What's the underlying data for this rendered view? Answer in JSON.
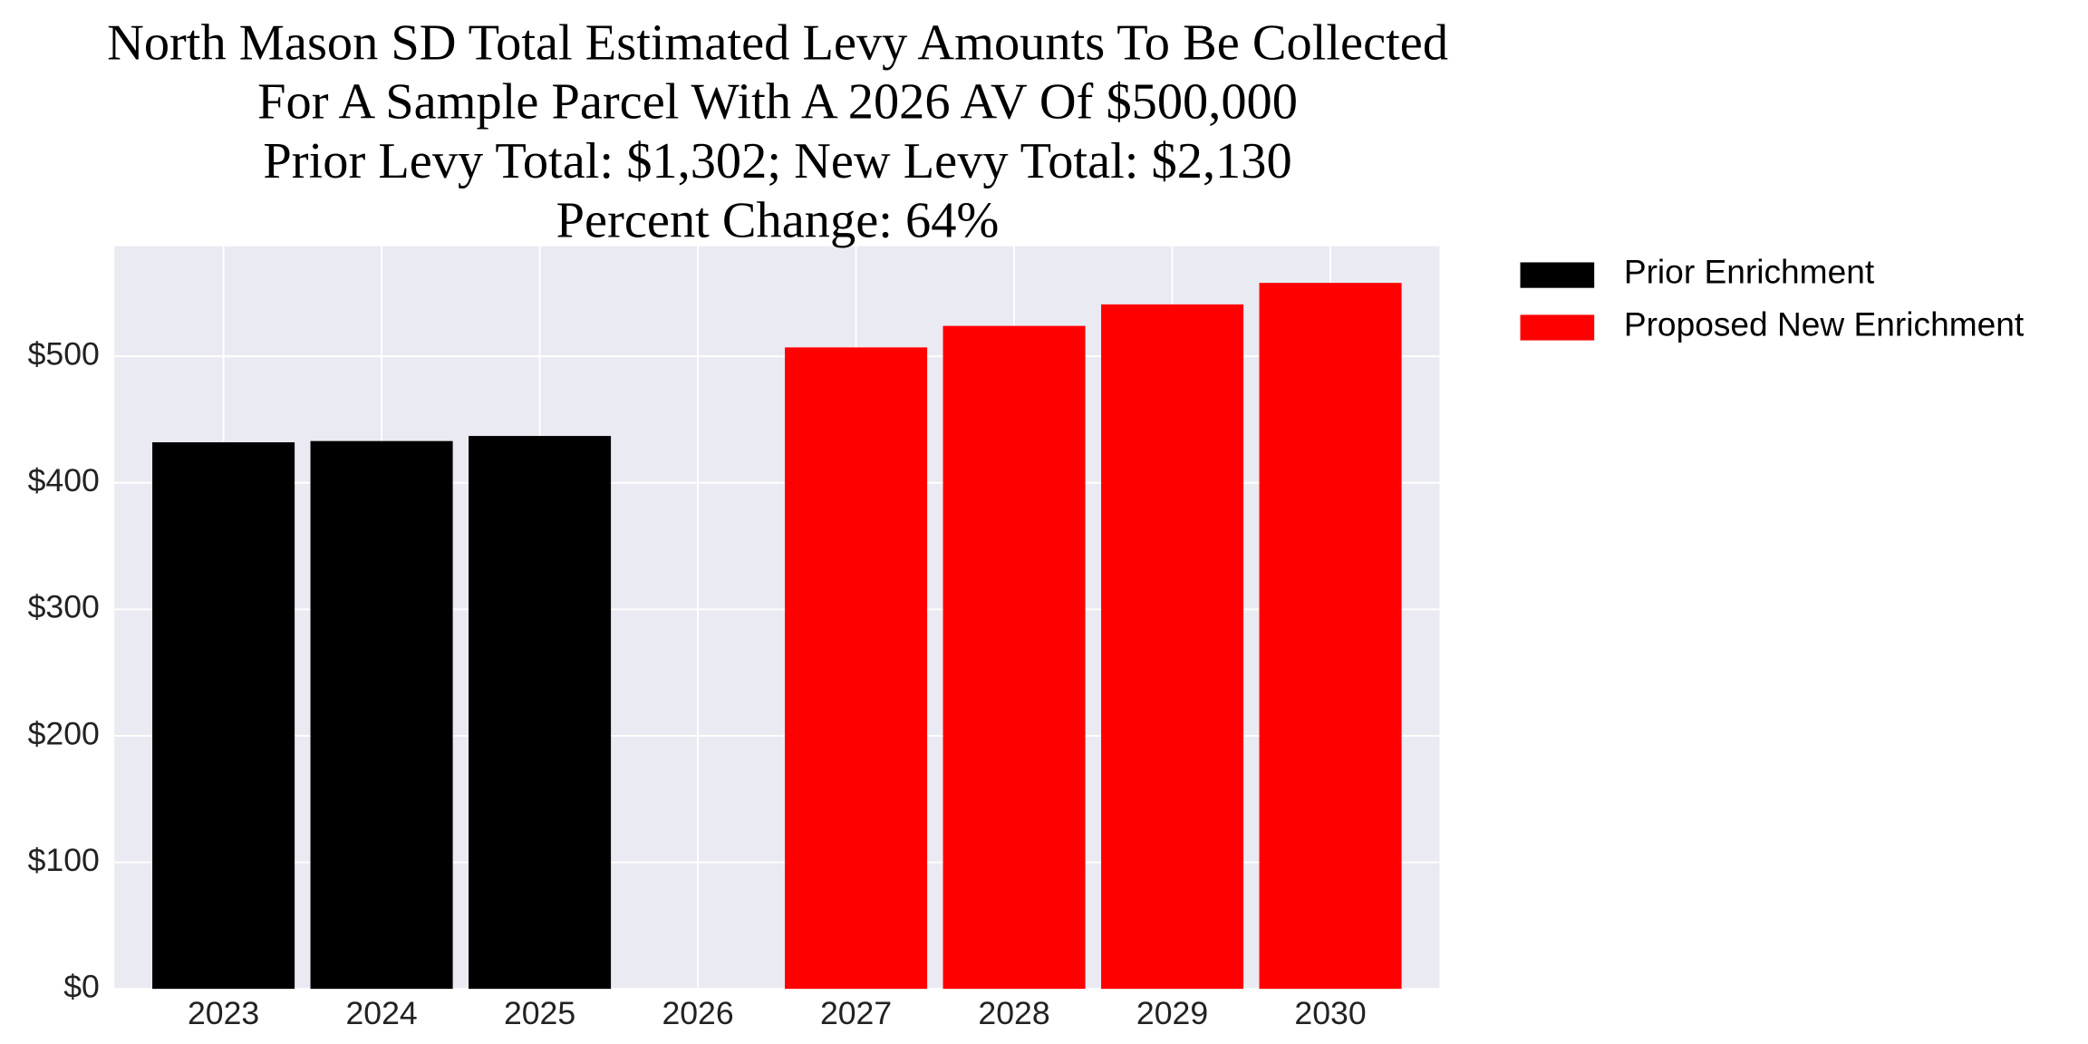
{
  "chart_data": {
    "type": "bar",
    "title_lines": [
      "North Mason SD Total Estimated Levy Amounts To Be Collected",
      "For A Sample Parcel With A 2026 AV Of $500,000",
      "Prior Levy Total:  $1,302; New Levy Total: $2,130",
      "Percent Change: 64%"
    ],
    "categories": [
      "2023",
      "2024",
      "2025",
      "2026",
      "2027",
      "2028",
      "2029",
      "2030"
    ],
    "series": [
      {
        "name": "Prior Enrichment",
        "color": "#000000",
        "values": [
          432,
          433,
          437,
          null,
          null,
          null,
          null,
          null
        ]
      },
      {
        "name": "Proposed New Enrichment",
        "color": "#ff0000",
        "values": [
          null,
          null,
          null,
          null,
          507,
          524,
          541,
          558
        ]
      }
    ],
    "ylim": [
      0,
      587
    ],
    "yticks": [
      {
        "value": 0,
        "label": "$0"
      },
      {
        "value": 100,
        "label": "$100"
      },
      {
        "value": 200,
        "label": "$200"
      },
      {
        "value": 300,
        "label": "$300"
      },
      {
        "value": 400,
        "label": "$400"
      },
      {
        "value": 500,
        "label": "$500"
      }
    ],
    "grid": true,
    "legend": "outside-upper-right"
  }
}
